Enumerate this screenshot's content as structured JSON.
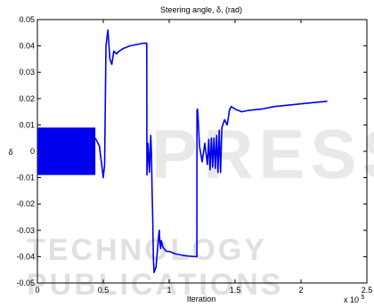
{
  "watermark": {
    "main": "PRESS",
    "sub": "TECHNOLOGY PUBLICATIONS"
  },
  "colors": {
    "series": "#0000ee",
    "axis": "#000000",
    "background": "#ffffff"
  },
  "chart_data": {
    "type": "line",
    "title": "Steering angle, δ, (rad)",
    "xlabel": "Iteration",
    "ylabel": "δ",
    "x_exponent_label": "x 10",
    "x_exponent_power": "5",
    "xlim": [
      0,
      2.5
    ],
    "ylim": [
      -0.05,
      0.05
    ],
    "x_ticks": [
      0,
      0.5,
      1,
      1.5,
      2,
      2.5
    ],
    "x_tick_labels": [
      "0",
      "0.5",
      "1",
      "1.5",
      "2",
      "2.5"
    ],
    "y_ticks": [
      -0.05,
      -0.04,
      -0.03,
      -0.02,
      -0.01,
      0,
      0.01,
      0.02,
      0.03,
      0.04,
      0.05
    ],
    "y_tick_labels": [
      "-0.05",
      "-0.04",
      "-0.03",
      "-0.02",
      "-0.01",
      "0",
      "0.01",
      "0.02",
      "0.03",
      "0.04",
      "0.05"
    ],
    "grid": false,
    "oscillation_band": {
      "x_start": 0,
      "x_end": 0.44,
      "y_min": -0.009,
      "y_max": 0.009
    },
    "series": [
      {
        "x": [
          0.44,
          0.47,
          0.5,
          0.51,
          0.52,
          0.53,
          0.535,
          0.55,
          0.565,
          0.58,
          0.6,
          0.62,
          0.65,
          0.7,
          0.75,
          0.8,
          0.83,
          0.831,
          0.84,
          0.85,
          0.86,
          0.865,
          0.87,
          0.875,
          0.88,
          0.885,
          0.9,
          0.92,
          0.925,
          0.93,
          0.935,
          0.94,
          0.945,
          0.95,
          0.96,
          0.98,
          1.0,
          1.05,
          1.1,
          1.15,
          1.2,
          1.21,
          1.211,
          1.215,
          1.22,
          1.23,
          1.25,
          1.27,
          1.29,
          1.3,
          1.31,
          1.32,
          1.33,
          1.34,
          1.35,
          1.36,
          1.37,
          1.38,
          1.39,
          1.4,
          1.42,
          1.44,
          1.45,
          1.455,
          1.46,
          1.47,
          1.5,
          1.55,
          1.6,
          1.7,
          1.8,
          1.9,
          2.0,
          2.1,
          2.2
        ],
        "y": [
          0.005,
          0.002,
          -0.01,
          -0.005,
          0.04,
          0.044,
          0.046,
          0.035,
          0.033,
          0.038,
          0.037,
          0.038,
          0.039,
          0.04,
          0.0405,
          0.041,
          0.041,
          -0.009,
          0.003,
          -0.008,
          0.006,
          0.0,
          -0.015,
          -0.025,
          -0.04,
          -0.046,
          -0.044,
          -0.032,
          -0.03,
          -0.035,
          -0.037,
          -0.034,
          -0.035,
          -0.036,
          -0.037,
          -0.038,
          -0.038,
          -0.039,
          -0.0395,
          -0.0398,
          -0.04,
          -0.04,
          0.0155,
          0.016,
          0.012,
          0.002,
          -0.004,
          0.003,
          -0.005,
          0.0045,
          -0.007,
          0.005,
          -0.006,
          0.005,
          -0.0065,
          0.006,
          -0.008,
          0.008,
          -0.008,
          0.009,
          0.012,
          0.01,
          0.013,
          0.015,
          0.016,
          0.017,
          0.016,
          0.015,
          0.0155,
          0.016,
          0.017,
          0.0175,
          0.018,
          0.0185,
          0.019
        ]
      }
    ]
  }
}
